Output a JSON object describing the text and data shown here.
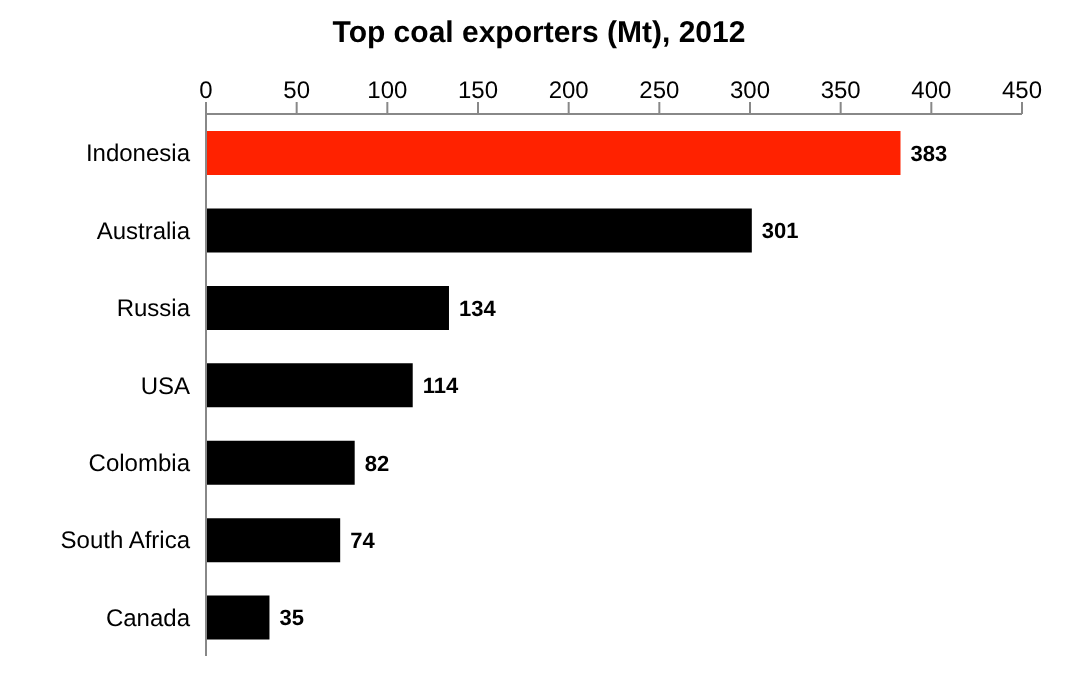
{
  "chart_data": {
    "type": "bar",
    "orientation": "horizontal",
    "title": "Top coal exporters (Mt), 2012",
    "categories": [
      "Indonesia",
      "Australia",
      "Russia",
      "USA",
      "Colombia",
      "South Africa",
      "Canada"
    ],
    "values": [
      383,
      301,
      134,
      114,
      82,
      74,
      35
    ],
    "colors": [
      "#ff2200",
      "#000000",
      "#000000",
      "#000000",
      "#000000",
      "#000000",
      "#000000"
    ],
    "xlim": [
      0,
      450
    ],
    "xticks": [
      0,
      50,
      100,
      150,
      200,
      250,
      300,
      350,
      400,
      450
    ],
    "data_labels": true,
    "grid": false
  }
}
